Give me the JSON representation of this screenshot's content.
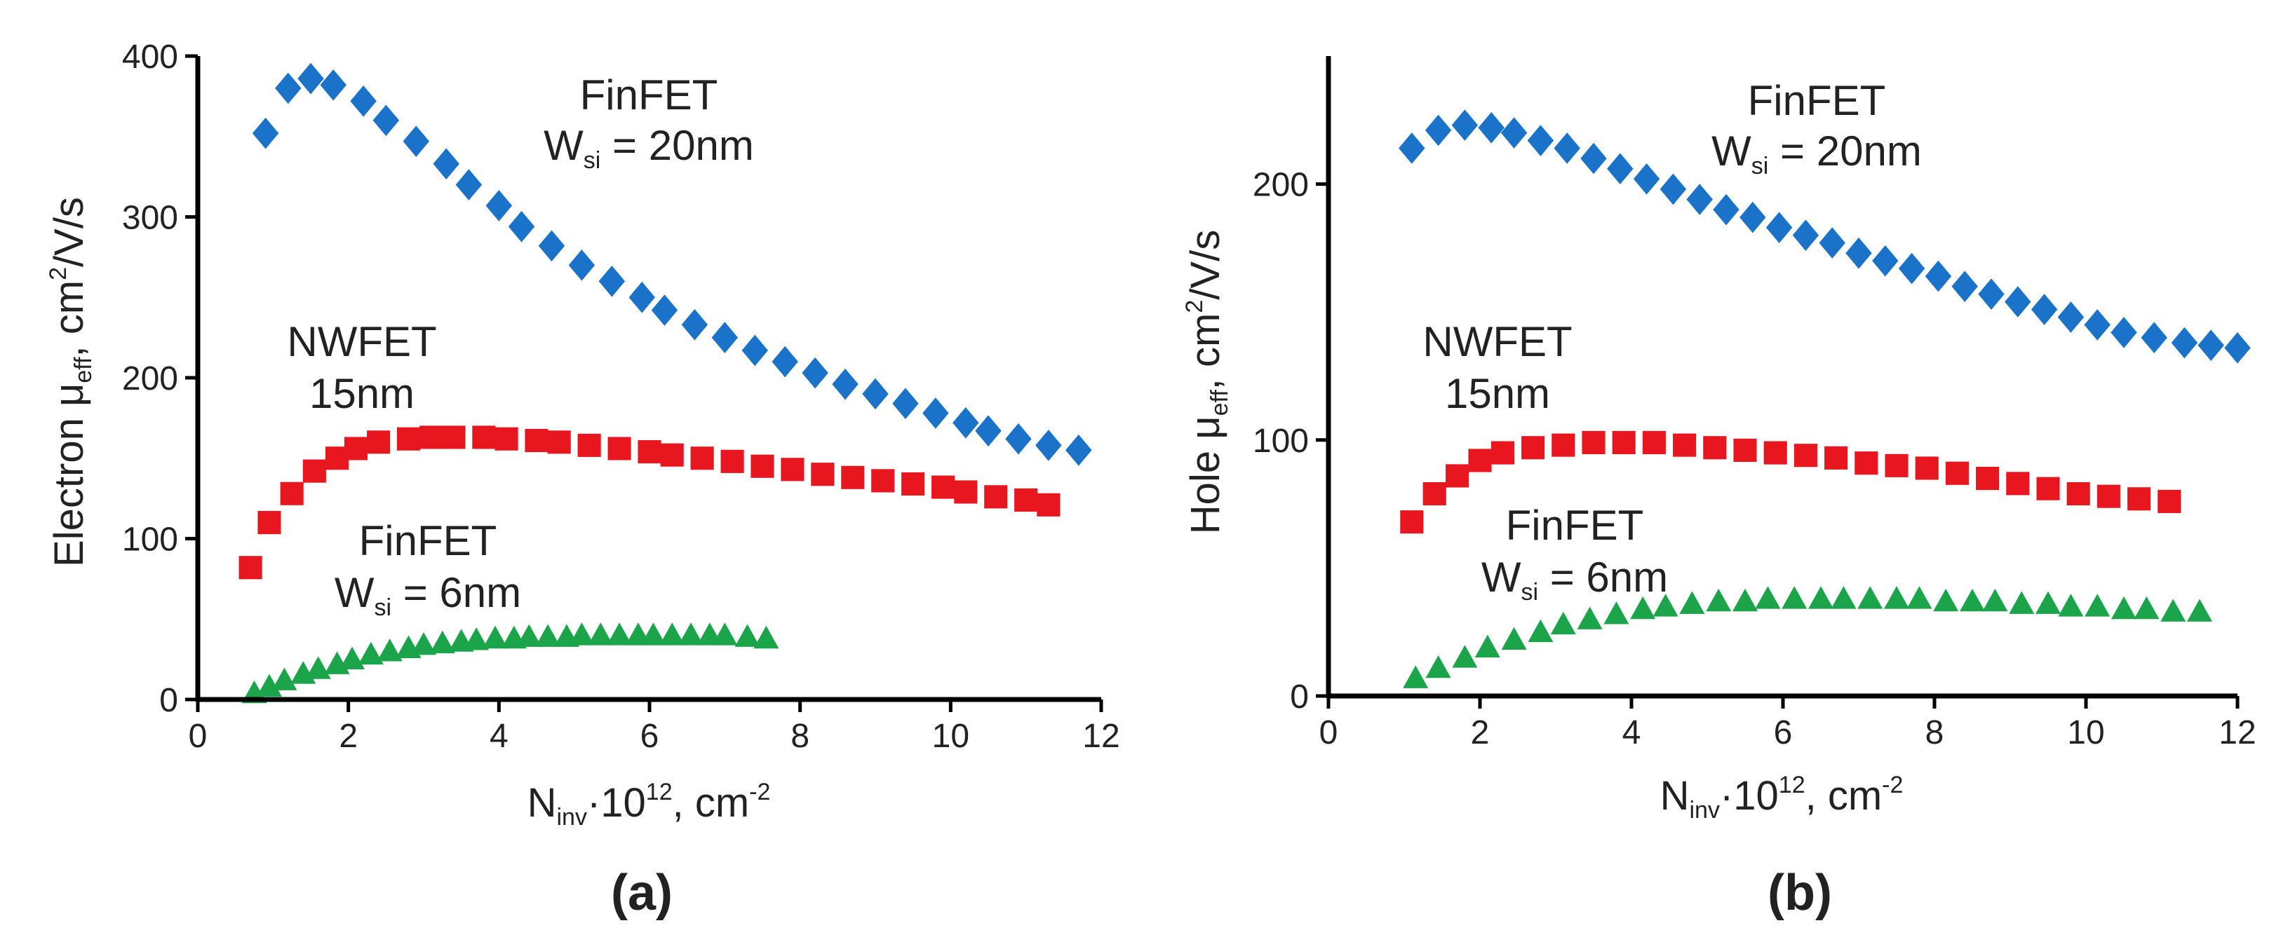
{
  "chart_data": [
    {
      "type": "scatter",
      "panel_label": "(a)",
      "ylabel": {
        "pre": "Electron μ",
        "sub": "eff",
        "mid": ",  cm",
        "sup": "2",
        "post": "/V/s"
      },
      "xlabel": {
        "pre": "N",
        "sub": "inv",
        "mid": "·10",
        "sup": "12",
        "post": ", cm",
        "sup2": "-2"
      },
      "xlim": [
        0,
        12
      ],
      "ylim": [
        0,
        400
      ],
      "xticks": [
        "0",
        "2",
        "4",
        "6",
        "8",
        "10",
        "12"
      ],
      "yticks": [
        "0",
        "100",
        "200",
        "300",
        "400"
      ],
      "annotations": [
        {
          "line1": "FinFET",
          "line2_pre": "W",
          "line2_sub": "si",
          "line2_post": " = 20nm"
        },
        {
          "line1": "NWFET",
          "line2": "15nm"
        },
        {
          "line1": "FinFET",
          "line2_pre": "W",
          "line2_sub": "si",
          "line2_post": " = 6nm"
        }
      ],
      "series": [
        {
          "name": "FinFET Wsi = 20nm",
          "color": "#1a73c8",
          "marker": "diamond",
          "x": [
            0.9,
            1.2,
            1.5,
            1.8,
            2.2,
            2.5,
            2.9,
            3.3,
            3.6,
            4.0,
            4.3,
            4.7,
            5.1,
            5.5,
            5.9,
            6.2,
            6.6,
            7.0,
            7.4,
            7.8,
            8.2,
            8.6,
            9.0,
            9.4,
            9.8,
            10.2,
            10.5,
            10.9,
            11.3,
            11.7
          ],
          "y": [
            352,
            380,
            386,
            382,
            372,
            360,
            347,
            333,
            320,
            307,
            294,
            282,
            270,
            260,
            250,
            242,
            233,
            225,
            217,
            210,
            203,
            196,
            190,
            184,
            178,
            172,
            167,
            162,
            158,
            155
          ]
        },
        {
          "name": "NWFET 15nm",
          "color": "#e8161e",
          "marker": "square",
          "x": [
            0.7,
            0.95,
            1.25,
            1.55,
            1.85,
            2.1,
            2.4,
            2.8,
            3.1,
            3.4,
            3.8,
            4.1,
            4.5,
            4.8,
            5.2,
            5.6,
            6.0,
            6.3,
            6.7,
            7.1,
            7.5,
            7.9,
            8.3,
            8.7,
            9.1,
            9.5,
            9.9,
            10.2,
            10.6,
            11.0,
            11.3
          ],
          "y": [
            82,
            110,
            128,
            142,
            150,
            156,
            160,
            162,
            163,
            163,
            163,
            162,
            161,
            160,
            158,
            156,
            154,
            152,
            150,
            148,
            145,
            143,
            140,
            138,
            136,
            134,
            132,
            129,
            126,
            124,
            121
          ]
        },
        {
          "name": "FinFET Wsi = 6nm",
          "color": "#1ca44a",
          "marker": "triangle",
          "x": [
            0.75,
            0.95,
            1.15,
            1.4,
            1.6,
            1.85,
            2.05,
            2.3,
            2.55,
            2.8,
            3.0,
            3.25,
            3.5,
            3.7,
            3.95,
            4.2,
            4.4,
            4.65,
            4.9,
            5.1,
            5.35,
            5.6,
            5.85,
            6.05,
            6.3,
            6.55,
            6.8,
            7.0,
            7.3,
            7.55
          ],
          "y": [
            4,
            8,
            12,
            16,
            19,
            22,
            25,
            28,
            30,
            32,
            34,
            35,
            36,
            37,
            38,
            38,
            39,
            39,
            39,
            40,
            40,
            40,
            40,
            40,
            40,
            40,
            40,
            40,
            39,
            38
          ]
        }
      ]
    },
    {
      "type": "scatter",
      "panel_label": "(b)",
      "ylabel": {
        "pre": "Hole μ",
        "sub": "eff",
        "mid": ",  cm",
        "sup": "2",
        "post": "/V/s"
      },
      "xlabel": {
        "pre": "N",
        "sub": "inv",
        "mid": "·10",
        "sup": "12",
        "post": ", cm",
        "sup2": "-2"
      },
      "xlim": [
        0,
        12
      ],
      "ylim": [
        0,
        250
      ],
      "xticks": [
        "0",
        "2",
        "4",
        "6",
        "8",
        "10",
        "12"
      ],
      "yticks": [
        "0",
        "100",
        "200"
      ],
      "annotations": [
        {
          "line1": "FinFET",
          "line2_pre": "W",
          "line2_sub": "si",
          "line2_post": " = 20nm"
        },
        {
          "line1": "NWFET",
          "line2": "15nm"
        },
        {
          "line1": "FinFET",
          "line2_pre": "W",
          "line2_sub": "si",
          "line2_post": " = 6nm"
        }
      ],
      "series": [
        {
          "name": "FinFET Wsi = 20nm",
          "color": "#1a73c8",
          "marker": "diamond",
          "x": [
            1.1,
            1.45,
            1.8,
            2.15,
            2.45,
            2.8,
            3.15,
            3.5,
            3.85,
            4.2,
            4.55,
            4.9,
            5.25,
            5.6,
            5.95,
            6.3,
            6.65,
            7.0,
            7.35,
            7.7,
            8.05,
            8.4,
            8.75,
            9.1,
            9.45,
            9.8,
            10.15,
            10.5,
            10.9,
            11.3,
            11.65,
            12.0
          ],
          "y": [
            214,
            221,
            223,
            222,
            220,
            217,
            214,
            210,
            206,
            202,
            198,
            194,
            190,
            187,
            183,
            180,
            177,
            173,
            170,
            167,
            164,
            160,
            157,
            154,
            151,
            148,
            145,
            142,
            140,
            138,
            137,
            136
          ]
        },
        {
          "name": "NWFET 15nm",
          "color": "#e8161e",
          "marker": "square",
          "x": [
            1.1,
            1.4,
            1.7,
            2.0,
            2.3,
            2.7,
            3.1,
            3.5,
            3.9,
            4.3,
            4.7,
            5.1,
            5.5,
            5.9,
            6.3,
            6.7,
            7.1,
            7.5,
            7.9,
            8.3,
            8.7,
            9.1,
            9.5,
            9.9,
            10.3,
            10.7,
            11.1
          ],
          "y": [
            68,
            79,
            86,
            92,
            95,
            97,
            98,
            99,
            99,
            99,
            98,
            97,
            96,
            95,
            94,
            93,
            91,
            90,
            89,
            87,
            85,
            83,
            81,
            79,
            78,
            77,
            76
          ]
        },
        {
          "name": "FinFET Wsi = 6nm",
          "color": "#1ca44a",
          "marker": "triangle",
          "x": [
            1.15,
            1.45,
            1.8,
            2.1,
            2.45,
            2.8,
            3.1,
            3.45,
            3.8,
            4.15,
            4.45,
            4.8,
            5.15,
            5.5,
            5.8,
            6.15,
            6.5,
            6.8,
            7.15,
            7.5,
            7.8,
            8.15,
            8.5,
            8.8,
            9.15,
            9.5,
            9.8,
            10.15,
            10.5,
            10.8,
            11.15,
            11.5
          ],
          "y": [
            7,
            11,
            15,
            19,
            22,
            25,
            28,
            30,
            32,
            34,
            35,
            36,
            37,
            37,
            38,
            38,
            38,
            38,
            38,
            38,
            38,
            37,
            37,
            37,
            36,
            36,
            35,
            35,
            34,
            34,
            33,
            33
          ]
        }
      ]
    }
  ]
}
